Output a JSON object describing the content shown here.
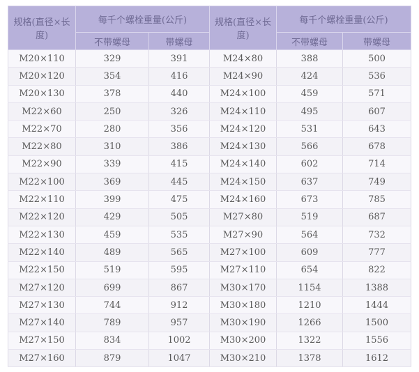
{
  "header": {
    "spec": "规格(直径×长度)",
    "weight": "每千个螺栓重量(公斤)",
    "without_nut": "不带螺母",
    "with_nut": "带螺母"
  },
  "rows": [
    [
      "M20×110",
      "329",
      "391",
      "M24×80",
      "388",
      "500"
    ],
    [
      "M20×120",
      "354",
      "416",
      "M24×90",
      "424",
      "536"
    ],
    [
      "M20×130",
      "378",
      "440",
      "M24×100",
      "459",
      "571"
    ],
    [
      "M22×60",
      "250",
      "326",
      "M24×110",
      "495",
      "607"
    ],
    [
      "M22×70",
      "280",
      "356",
      "M24×120",
      "531",
      "643"
    ],
    [
      "M22×80",
      "310",
      "386",
      "M24×130",
      "566",
      "678"
    ],
    [
      "M22×90",
      "339",
      "415",
      "M24×140",
      "602",
      "714"
    ],
    [
      "M22×100",
      "369",
      "445",
      "M24×150",
      "637",
      "749"
    ],
    [
      "M22×110",
      "399",
      "475",
      "M24×160",
      "673",
      "785"
    ],
    [
      "M22×120",
      "429",
      "505",
      "M27×80",
      "519",
      "687"
    ],
    [
      "M22×130",
      "459",
      "535",
      "M27×90",
      "564",
      "732"
    ],
    [
      "M22×140",
      "489",
      "565",
      "M27×100",
      "609",
      "777"
    ],
    [
      "M22×150",
      "519",
      "595",
      "M27×110",
      "654",
      "822"
    ],
    [
      "M27×120",
      "699",
      "867",
      "M30×170",
      "1154",
      "1388"
    ],
    [
      "M27×130",
      "744",
      "912",
      "M30×180",
      "1210",
      "1444"
    ],
    [
      "M27×140",
      "789",
      "957",
      "M30×190",
      "1266",
      "1500"
    ],
    [
      "M27×150",
      "834",
      "1002",
      "M30×200",
      "1322",
      "1556"
    ],
    [
      "M27×160",
      "879",
      "1047",
      "M30×210",
      "1378",
      "1612"
    ]
  ],
  "colors": {
    "header_bg": "#b7b1da",
    "header_text": "#6f6a94",
    "cell_text": "#5a5a5a"
  }
}
